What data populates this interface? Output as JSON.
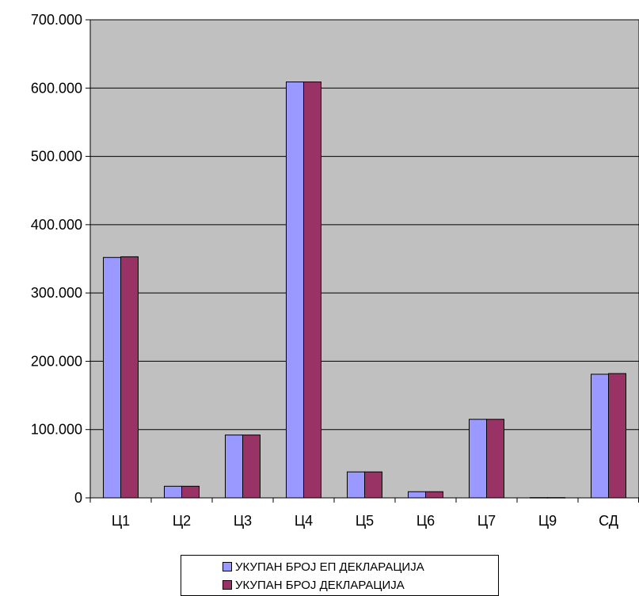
{
  "chart_data": {
    "type": "bar",
    "categories": [
      "Ц1",
      "Ц2",
      "Ц3",
      "Ц4",
      "Ц5",
      "Ц6",
      "Ц7",
      "Ц9",
      "СД"
    ],
    "series": [
      {
        "name": "УКУПАН БРОЈ ЕП ДЕКЛАРАЦИЈА",
        "color": "#9999ff",
        "values": [
          352000,
          17000,
          92000,
          609000,
          38000,
          9000,
          115000,
          400,
          181000
        ]
      },
      {
        "name": "УКУПАН БРОЈ ДЕКЛАРАЦИЈА",
        "color": "#993366",
        "values": [
          353000,
          17000,
          92000,
          609000,
          38000,
          9000,
          115000,
          400,
          182000
        ]
      }
    ],
    "y_ticks": [
      "0",
      "100.000",
      "200.000",
      "300.000",
      "400.000",
      "500.000",
      "600.000",
      "700.000"
    ],
    "ylim": [
      0,
      700000
    ],
    "plot_background": "#c0c0c0",
    "grid": true,
    "legend_position": "bottom"
  }
}
